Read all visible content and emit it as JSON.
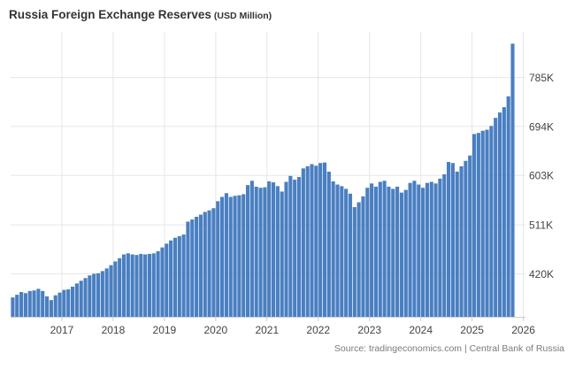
{
  "chart_data": {
    "type": "bar",
    "title": "Russia Foreign Exchange Reserves",
    "unit": "(USD Million)",
    "source": "Source: tradingeconomics.com | Central Bank of Russia",
    "color": "#4a7fc1",
    "y_axis_position": "right",
    "grid": true,
    "ylim": [
      340000,
      870000
    ],
    "y_ticks": [
      {
        "value": 420000,
        "label": "420K"
      },
      {
        "value": 511000,
        "label": "511K"
      },
      {
        "value": 603000,
        "label": "603K"
      },
      {
        "value": 694000,
        "label": "694K"
      },
      {
        "value": 785000,
        "label": "785K"
      }
    ],
    "x_ticks": [
      {
        "month_index": 12,
        "label": "2017"
      },
      {
        "month_index": 24,
        "label": "2018"
      },
      {
        "month_index": 36,
        "label": "2019"
      },
      {
        "month_index": 48,
        "label": "2020"
      },
      {
        "month_index": 60,
        "label": "2021"
      },
      {
        "month_index": 72,
        "label": "2022"
      },
      {
        "month_index": 84,
        "label": "2023"
      },
      {
        "month_index": 96,
        "label": "2024"
      },
      {
        "month_index": 108,
        "label": "2025"
      },
      {
        "month_index": 120,
        "label": "2026"
      }
    ],
    "series": [
      {
        "start": "2016-01",
        "frequency": "monthly",
        "values": [
          376000,
          381000,
          386000,
          384000,
          388000,
          389000,
          392000,
          388000,
          378000,
          371000,
          380000,
          385000,
          390000,
          391000,
          396000,
          402000,
          407000,
          412000,
          417000,
          420000,
          421000,
          425000,
          430000,
          436000,
          443000,
          449000,
          456000,
          458000,
          456000,
          455000,
          457000,
          456000,
          457000,
          458000,
          462000,
          469000,
          476000,
          482000,
          487000,
          490000,
          493000,
          517000,
          521000,
          526000,
          530000,
          535000,
          538000,
          542000,
          555000,
          563000,
          570000,
          563000,
          565000,
          566000,
          568000,
          585000,
          593000,
          582000,
          580000,
          581000,
          592000,
          590000,
          583000,
          573000,
          591000,
          602000,
          595000,
          600000,
          616000,
          620000,
          624000,
          621000,
          626000,
          627000,
          610000,
          592000,
          586000,
          583000,
          578000,
          569000,
          544000,
          553000,
          564000,
          580000,
          588000,
          582000,
          591000,
          593000,
          582000,
          578000,
          582000,
          571000,
          576000,
          589000,
          593000,
          586000,
          580000,
          589000,
          591000,
          588000,
          597000,
          605000,
          628000,
          626000,
          610000,
          620000,
          630000,
          640000,
          680000,
          682000,
          686000,
          688000,
          695000,
          710000,
          720000,
          730000,
          750000,
          848000
        ]
      }
    ]
  }
}
